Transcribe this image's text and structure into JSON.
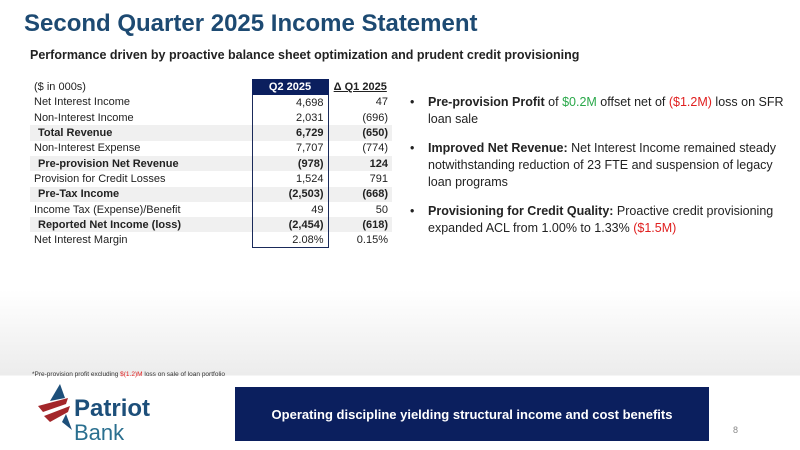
{
  "title": "Second Quarter 2025 Income Statement",
  "subtitle": "Performance driven by proactive balance sheet optimization and prudent credit provisioning",
  "table": {
    "headers": [
      "($ in 000s)",
      "Q2 2025",
      "Δ Q1 2025"
    ],
    "rows": [
      {
        "label": "Net Interest Income",
        "q2": "4,698",
        "delta": "47",
        "bold": false
      },
      {
        "label": "Non-Interest Income",
        "q2": "2,031",
        "delta": "(696)",
        "bold": false
      },
      {
        "label": "Total Revenue",
        "q2": "6,729",
        "delta": "(650)",
        "bold": true
      },
      {
        "label": "Non-Interest Expense",
        "q2": "7,707",
        "delta": "(774)",
        "bold": false
      },
      {
        "label": "Pre-provision Net Revenue",
        "q2": "(978)",
        "delta": "124",
        "bold": true
      },
      {
        "label": "Provision for Credit Losses",
        "q2": "1,524",
        "delta": "791",
        "bold": false
      },
      {
        "label": "Pre-Tax Income",
        "q2": "(2,503)",
        "delta": "(668)",
        "bold": true
      },
      {
        "label": "Income Tax (Expense)/Benefit",
        "q2": "49",
        "delta": "50",
        "bold": false
      },
      {
        "label": "Reported Net Income (loss)",
        "q2": "(2,454)",
        "delta": "(618)",
        "bold": true
      },
      {
        "label": "Net Interest Margin",
        "q2": "2.08%",
        "delta": "0.15%",
        "bold": false
      }
    ]
  },
  "bullets": [
    {
      "head": "Pre-provision Profit",
      "parts": [
        " of ",
        "$0.2M",
        " offset net of ",
        "($1.2M)",
        " loss on SFR loan sale"
      ]
    },
    {
      "head": "Improved Net Revenue:",
      "parts": [
        " Net Interest Income remained steady notwithstanding reduction of 23 FTE and suspension of legacy loan programs"
      ]
    },
    {
      "head": "Provisioning for Credit Quality:",
      "parts": [
        " Proactive credit provisioning expanded ACL from 1.00% to 1.33% ",
        "($1.5M)"
      ]
    }
  ],
  "footnote": {
    "pre": "*Pre-provision profit excluding ",
    "red": "$(1.2)M",
    "post": " loss on sale of loan portfolio"
  },
  "logo": {
    "line1": "Patriot",
    "line2": "Bank"
  },
  "banner": "Operating discipline yielding structural income and cost benefits",
  "page_number": "8",
  "colors": {
    "title": "#1d4a72",
    "navy": "#0b1f5e",
    "green": "#2aa84a",
    "red": "#e02020"
  }
}
